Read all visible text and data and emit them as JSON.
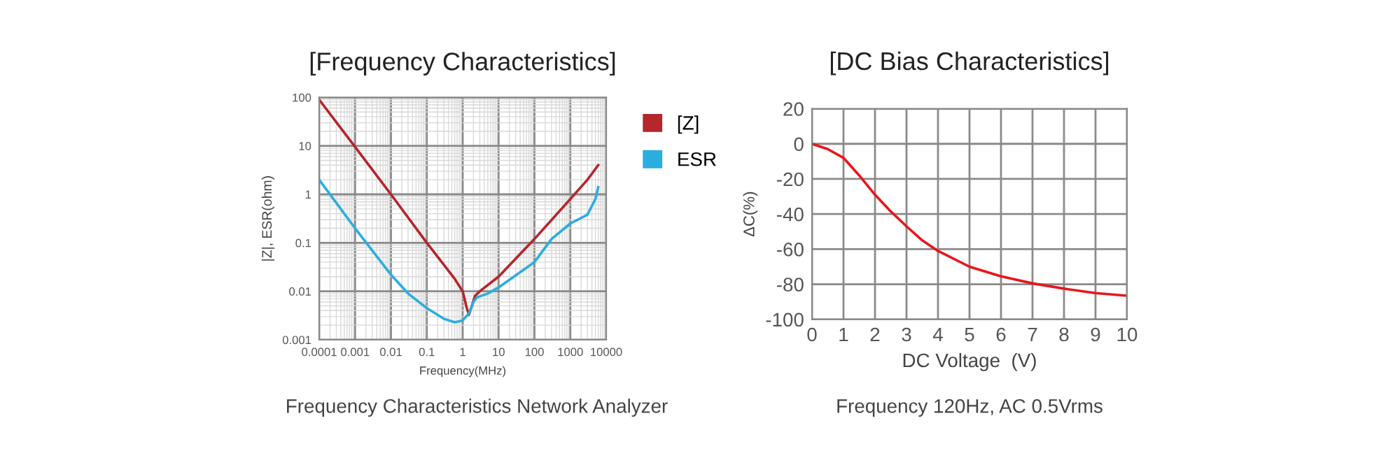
{
  "chart_data": [
    {
      "type": "line",
      "title": "[Frequency Characteristics]",
      "xlabel": "Frequency(MHz)",
      "ylabel": "|Z|, ESR(ohm)",
      "log": "xy",
      "grid": true,
      "legend": "top right",
      "xlim": [
        0.0001,
        10000
      ],
      "ylim": [
        0.001,
        100
      ],
      "xticks": [
        0.0001,
        0.001,
        0.01,
        0.1,
        1,
        10,
        100,
        1000,
        10000
      ],
      "yticks": [
        0.001,
        0.01,
        0.1,
        1,
        10,
        100
      ],
      "series": [
        {
          "name": "[Z]",
          "color": "#b5262d",
          "x": [
            0.0001,
            0.001,
            0.01,
            0.1,
            0.3,
            0.6,
            1,
            1.3,
            1.5,
            1.8,
            2.2,
            3,
            10,
            100,
            1000,
            3000,
            6000
          ],
          "values": [
            90,
            9.5,
            1,
            0.1,
            0.035,
            0.018,
            0.01,
            0.0045,
            0.0033,
            0.005,
            0.008,
            0.01,
            0.02,
            0.12,
            0.8,
            2,
            4
          ]
        },
        {
          "name": "ESR",
          "color": "#2aaee0",
          "x": [
            0.0001,
            0.001,
            0.01,
            0.03,
            0.1,
            0.3,
            0.6,
            1,
            1.5,
            2,
            2.5,
            5,
            10,
            100,
            300,
            1000,
            3000,
            5000,
            6000
          ],
          "values": [
            2,
            0.2,
            0.022,
            0.009,
            0.0045,
            0.0027,
            0.0023,
            0.0025,
            0.0035,
            0.006,
            0.0075,
            0.009,
            0.012,
            0.04,
            0.12,
            0.25,
            0.38,
            0.8,
            1.4
          ]
        }
      ],
      "annotations": [
        "Frequency Characteristics Network Analyzer"
      ]
    },
    {
      "type": "line",
      "title": "[DC Bias Characteristics]",
      "xlabel": "DC Voltage  (V)",
      "ylabel": "ΔC(%)",
      "grid": true,
      "xlim": [
        0,
        10
      ],
      "ylim": [
        -100,
        20
      ],
      "xticks": [
        0,
        1,
        2,
        3,
        4,
        5,
        6,
        7,
        8,
        9,
        10
      ],
      "yticks": [
        -100,
        -80,
        -60,
        -40,
        -20,
        0,
        20
      ],
      "series": [
        {
          "color": "#e8161c",
          "x": [
            0,
            0.5,
            1,
            1.5,
            2,
            2.5,
            3,
            3.5,
            4,
            5,
            6,
            7,
            8,
            9,
            10
          ],
          "values": [
            0,
            -3,
            -8,
            -18,
            -29,
            -38.5,
            -47,
            -55,
            -61,
            -70,
            -75.5,
            -79.5,
            -82.5,
            -85,
            -86.5
          ]
        }
      ],
      "annotations": [
        "Frequency 120Hz, AC 0.5Vrms"
      ]
    }
  ]
}
